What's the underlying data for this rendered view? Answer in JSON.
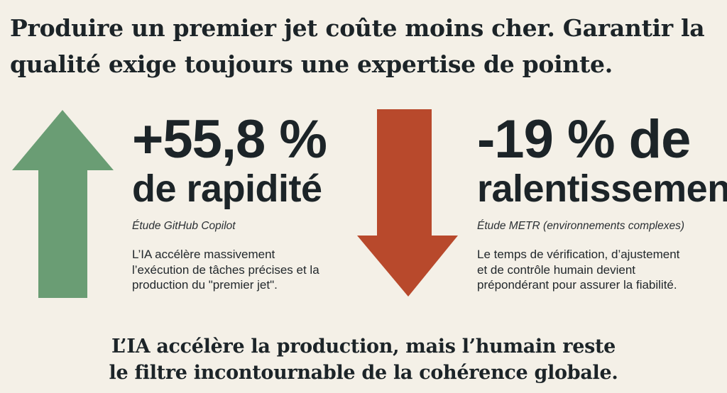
{
  "title": {
    "line1": "Produire un premier jet coûte moins cher. Garantir la",
    "line2": "qualité exige toujours une expertise de pointe."
  },
  "colors": {
    "background": "#f4f0e7",
    "up_arrow": "#6a9d74",
    "down_arrow": "#b8492c",
    "text": "#1c2428"
  },
  "left": {
    "icon": "arrow-up-icon",
    "figure": "+55,8 %",
    "label": "de rapidité",
    "source": "Étude GitHub Copilot",
    "body": [
      "L’IA accélère massivement",
      "l’exécution de tâches précises et la",
      "production du \"premier jet\"."
    ]
  },
  "right": {
    "icon": "arrow-down-icon",
    "figure": "-19 % de",
    "label": "ralentissement",
    "source": "Étude METR (environnements complexes)",
    "body": [
      "Le temps de vérification, d’ajustement",
      "et de contrôle humain devient",
      "prépondérant pour assurer la fiabilité."
    ]
  },
  "conclusion": {
    "line1": "L’IA accélère la production, mais l’humain reste",
    "line2": "le filtre incontournable de la cohérence globale."
  }
}
